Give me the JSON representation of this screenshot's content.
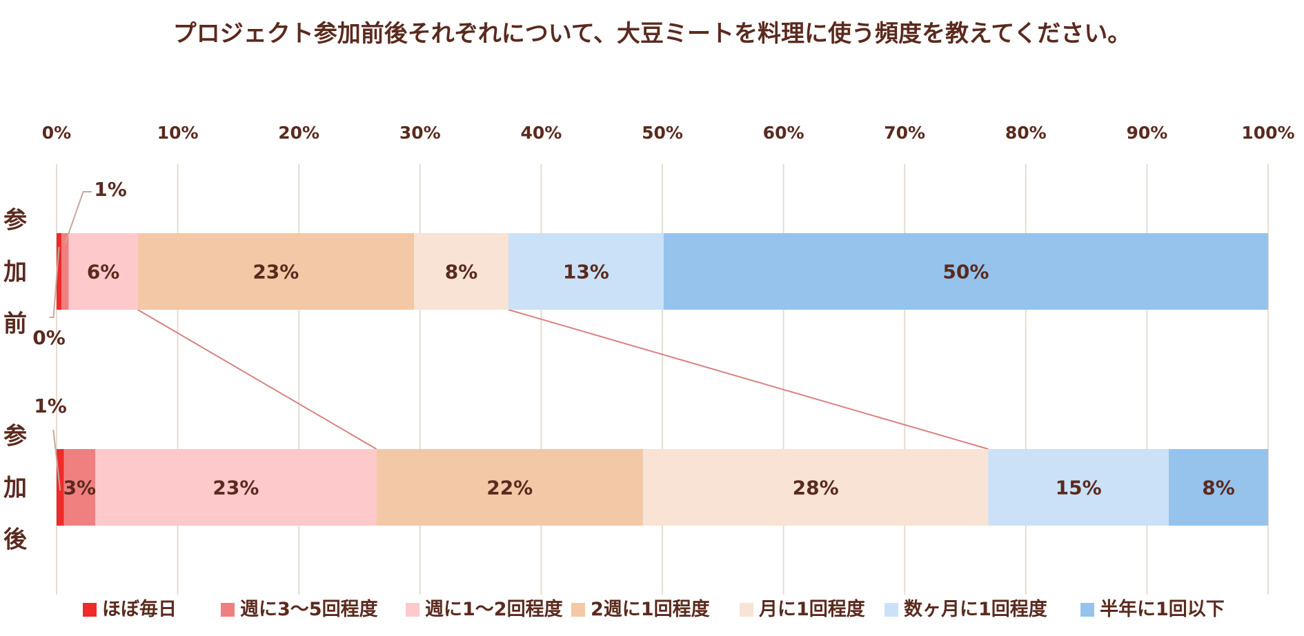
{
  "chart_data": {
    "type": "bar",
    "orientation": "horizontal",
    "stacked": "percent",
    "title": "プロジェクト参加前後それぞれについて、大豆ミートを料理に使う頻度を教えてください。",
    "categories": [
      "参加前",
      "参加後"
    ],
    "x_ticks": [
      "0%",
      "10%",
      "20%",
      "30%",
      "40%",
      "50%",
      "60%",
      "70%",
      "80%",
      "90%",
      "100%"
    ],
    "xlim": [
      0,
      100
    ],
    "x_axis_position": "top",
    "grid": true,
    "legend_position": "bottom",
    "series": [
      {
        "name": "ほぼ毎日",
        "color": "#ee2a2a",
        "values": [
          0.4,
          0.6
        ],
        "labels": [
          "0%",
          "1%"
        ]
      },
      {
        "name": "週に3～5回程度",
        "color": "#f08080",
        "values": [
          0.6,
          2.6
        ],
        "labels": [
          "1%",
          "3%"
        ]
      },
      {
        "name": "週に1～2回程度",
        "color": "#fdc9cb",
        "values": [
          5.7,
          23.2
        ],
        "labels": [
          "6%",
          "23%"
        ]
      },
      {
        "name": "2週に1回程度",
        "color": "#f2c8a6",
        "values": [
          22.8,
          22.0
        ],
        "labels": [
          "23%",
          "22%"
        ]
      },
      {
        "name": "月に1回程度",
        "color": "#f8e3d4",
        "values": [
          7.8,
          28.5
        ],
        "labels": [
          "8%",
          "28%"
        ]
      },
      {
        "name": "数ヶ月に1回程度",
        "color": "#cbe1f7",
        "values": [
          12.8,
          14.9
        ],
        "labels": [
          "13%",
          "15%"
        ]
      },
      {
        "name": "半年に1回以下",
        "color": "#95c3ec",
        "values": [
          49.9,
          8.2
        ],
        "labels": [
          "50%",
          "8%"
        ]
      }
    ],
    "series_lines": [
      {
        "from_series": 2,
        "color": "#d98080"
      },
      {
        "from_series": 4,
        "color": "#d98080"
      }
    ]
  }
}
